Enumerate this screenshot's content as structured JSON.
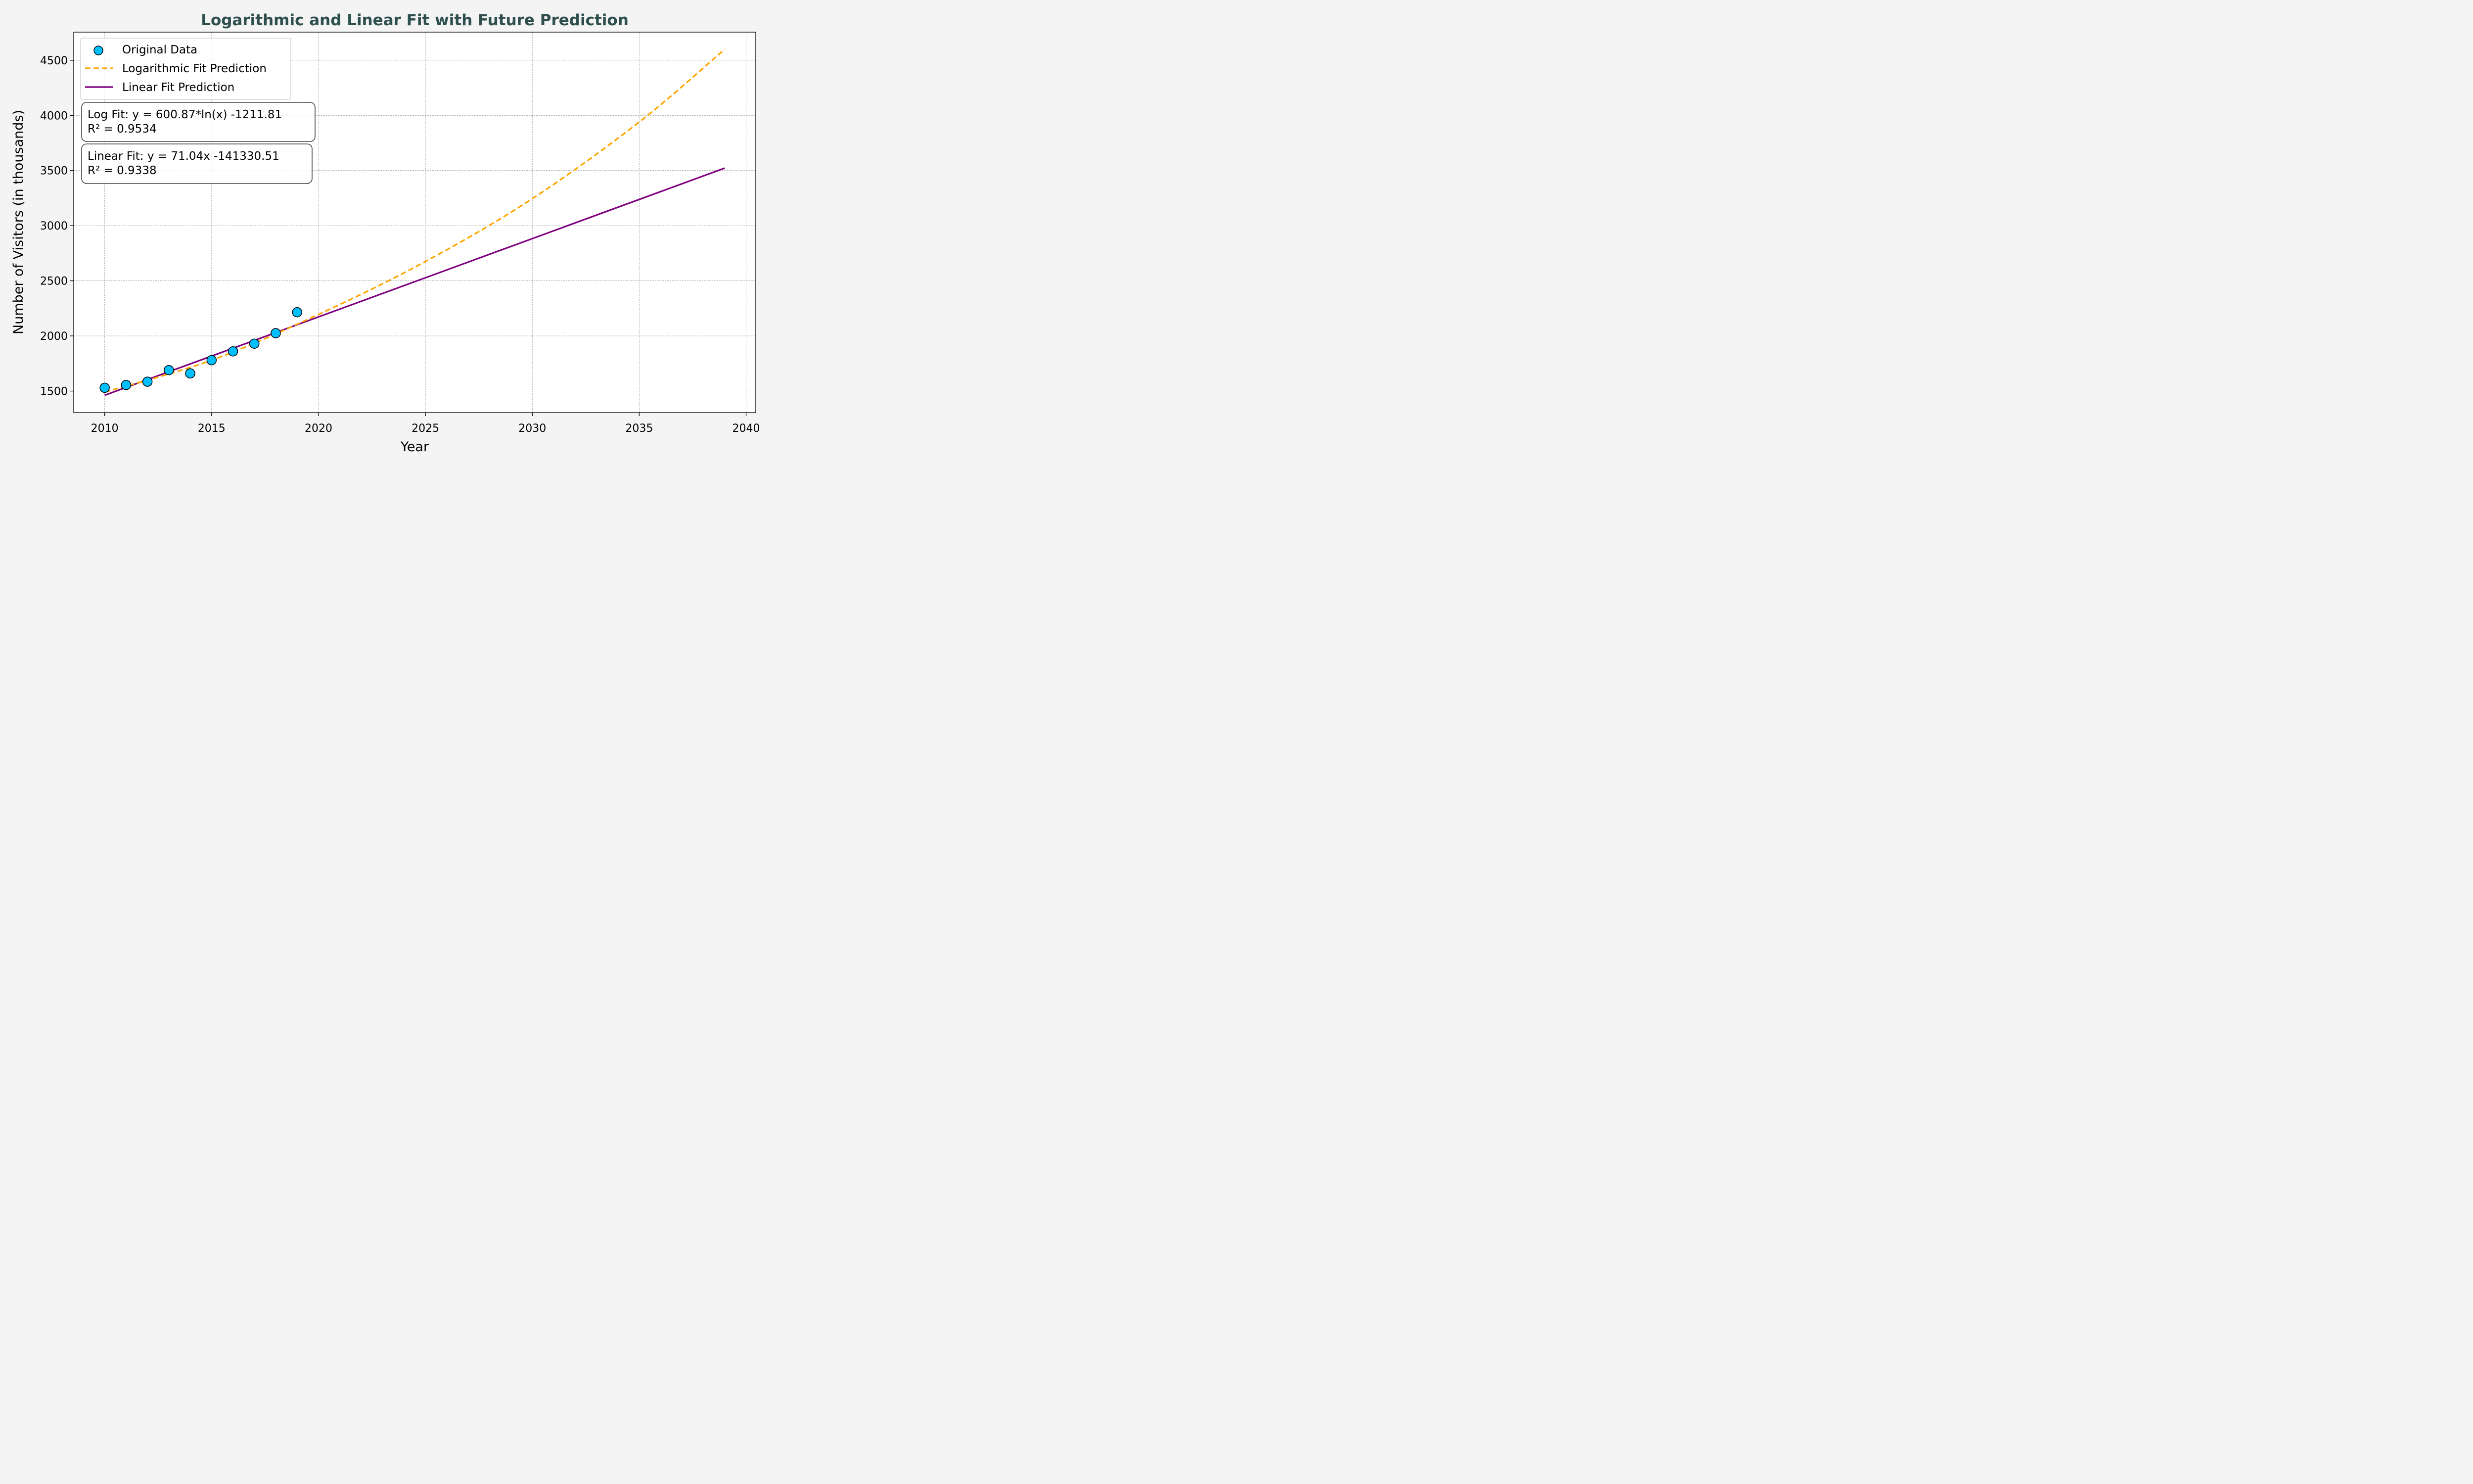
{
  "chart_data": {
    "type": "line",
    "title": "Logarithmic and Linear Fit with Future Prediction",
    "xlabel": "Year",
    "ylabel": "Number of Visitors (in thousands)",
    "xlim": [
      2008.55,
      2040.45
    ],
    "ylim": [
      1305,
      4755
    ],
    "xticks": [
      2010,
      2015,
      2020,
      2025,
      2030,
      2035,
      2040
    ],
    "yticks": [
      1500,
      2000,
      2500,
      3000,
      3500,
      4000,
      4500
    ],
    "grid": true,
    "legend_position": "top-left",
    "series": [
      {
        "name": "Original Data",
        "kind": "scatter",
        "color": "#00BFFF",
        "edge_color": "#000000",
        "x": [
          2010,
          2011,
          2012,
          2013,
          2014,
          2015,
          2016,
          2017,
          2018,
          2019
        ],
        "y": [
          1530,
          1555,
          1585,
          1690,
          1660,
          1780,
          1860,
          1930,
          2025,
          2215
        ]
      },
      {
        "name": "Logarithmic Fit Prediction",
        "kind": "line",
        "style": "dashed",
        "color": "#FFA500",
        "x": [
          2010,
          2015,
          2020,
          2025,
          2030,
          2035,
          2039
        ],
        "y": [
          1490,
          1780,
          2195,
          2675,
          3245,
          3940,
          4600
        ]
      },
      {
        "name": "Linear Fit Prediction",
        "kind": "line",
        "style": "solid",
        "color": "#800080",
        "x": [
          2010,
          2039
        ],
        "y": [
          1462,
          3522
        ]
      }
    ],
    "annotations": [
      {
        "line1": "Log Fit: y = 600.87*ln(x) -1211.81",
        "line2": "R² = 0.9534"
      },
      {
        "line1": "Linear Fit: y = 71.04x -141330.51",
        "line2": "R² = 0.9338"
      }
    ]
  }
}
